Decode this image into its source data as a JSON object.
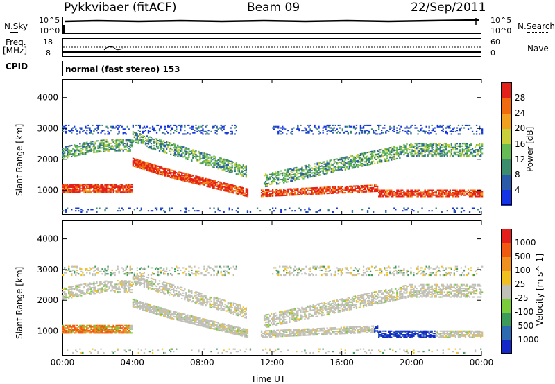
{
  "header": {
    "station": "Pykkvibaer (fitACF)",
    "beam": "Beam 09",
    "date": "22/Sep/2011"
  },
  "top_panels": {
    "nsky_label": "N.Sky",
    "nsearch_label": "N.Search",
    "nsky_ticks": [
      "10^5",
      "10^0"
    ],
    "nsearch_ticks": [
      "10^5",
      "10^0"
    ],
    "freq_label": "Freq.",
    "freq_unit": "[MHz]",
    "freq_ticks": [
      "18",
      "8"
    ],
    "nave_label": "Nave",
    "nave_ticks": [
      "60",
      "0"
    ],
    "cpid_label": "CPID",
    "cpid_text": "normal (fast stereo) 153"
  },
  "chart_data": [
    {
      "type": "heatmap",
      "title": "",
      "xlabel": "Time UT",
      "ylabel": "Slant Range [km]",
      "x_ticks": [
        "00:00",
        "04:00",
        "08:00",
        "12:00",
        "16:00",
        "20:00",
        "00:00"
      ],
      "y_ticks": [
        1000,
        2000,
        3000,
        4000
      ],
      "xlim": [
        0,
        24
      ],
      "ylim": [
        200,
        4600
      ],
      "colorbar": {
        "label": "Power [dB]",
        "ticks": [
          4,
          8,
          12,
          16,
          20,
          24,
          28
        ],
        "colors": [
          "#1432e6",
          "#2a5aa8",
          "#3c8c6e",
          "#66bb55",
          "#c8cf3a",
          "#f2a020",
          "#f06a10",
          "#e4201a"
        ]
      }
    },
    {
      "type": "heatmap",
      "title": "",
      "xlabel": "Time UT",
      "ylabel": "Slant Range [km]",
      "x_ticks": [
        "00:00",
        "04:00",
        "08:00",
        "12:00",
        "16:00",
        "20:00",
        "00:00"
      ],
      "y_ticks": [
        1000,
        2000,
        3000,
        4000
      ],
      "xlim": [
        0,
        24
      ],
      "ylim": [
        200,
        4600
      ],
      "colorbar": {
        "label": "Velocity [m s^-1]",
        "ticks": [
          "1000",
          "500",
          "100",
          "25",
          "-25",
          "-100",
          "-500",
          "-1000"
        ],
        "colors": [
          "#1428c8",
          "#2e6ab0",
          "#3c9a5a",
          "#7acc3a",
          "#c0c0b8",
          "#f0c020",
          "#f09020",
          "#f05a10",
          "#e41e1a"
        ]
      }
    }
  ]
}
